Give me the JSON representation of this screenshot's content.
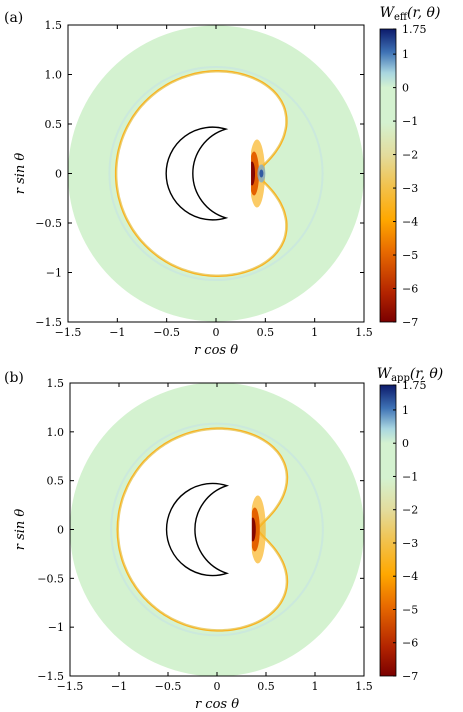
{
  "panels": [
    {
      "label": "(a)",
      "cbar_title": "W_eff(r, θ)",
      "cbar_title_main": "W",
      "cbar_title_sub": "eff",
      "cbar_title_args": "(r, θ)",
      "xlabel": "r cos θ",
      "ylabel": "r sin θ",
      "xticks": [
        "−1.5",
        "−1",
        "−0.5",
        "0",
        "0.5",
        "1",
        "1.5"
      ],
      "yticks": [
        "1.5",
        "1.0",
        "0.5",
        "0",
        "−0.5",
        "−1",
        "−1.5"
      ],
      "cticks": [
        "1.75",
        "1",
        "0",
        "−1",
        "−2",
        "−3",
        "−4",
        "−5",
        "−6",
        "−7"
      ]
    },
    {
      "label": "(b)",
      "cbar_title": "W_app(r, θ)",
      "cbar_title_main": "W",
      "cbar_title_sub": "app",
      "cbar_title_args": "(r, θ)",
      "xlabel": "r cos θ",
      "ylabel": "r sin θ",
      "xticks": [
        "−1.5",
        "−1",
        "−0.5",
        "0",
        "0.5",
        "1",
        "1.5"
      ],
      "yticks": [
        "1.5",
        "1.0",
        "0.5",
        "0",
        "−0.5",
        "−1",
        "−1.5"
      ],
      "cticks": [
        "1.75",
        "1",
        "0",
        "−1",
        "−2",
        "−3",
        "−4",
        "−5",
        "−6",
        "−7"
      ]
    }
  ],
  "chart_data": [
    {
      "type": "heatmap",
      "title": "",
      "xlabel": "r cos θ",
      "ylabel": "r sin θ",
      "xlim": [
        -1.5,
        1.5
      ],
      "ylim": [
        -1.5,
        1.5
      ],
      "colorbar_label": "W_eff(r, θ)",
      "colorbar_range": [
        -7,
        1.75
      ],
      "colorbar_ticks": [
        1.75,
        1,
        0,
        -1,
        -2,
        -3,
        -4,
        -5,
        -6,
        -7
      ],
      "domain": "annulus between a kidney-shaped inner boundary and the outer circle r = 1.5",
      "background_value": 0,
      "features": [
        {
          "description": "thin negative band along the inner kidney boundary",
          "value_approx": -2
        },
        {
          "description": "strong negative minimum at the concave notch near (0.35, 0)",
          "value_approx": -7
        },
        {
          "description": "small positive patch just right of the notch near (0.45, 0)",
          "value_approx": 1
        }
      ],
      "overlay": "black crescent outline centred near (0, 0)"
    },
    {
      "type": "heatmap",
      "title": "",
      "xlabel": "r cos θ",
      "ylabel": "r sin θ",
      "xlim": [
        -1.5,
        1.5
      ],
      "ylim": [
        -1.5,
        1.5
      ],
      "colorbar_label": "W_app(r, θ)",
      "colorbar_range": [
        -7,
        1.75
      ],
      "colorbar_ticks": [
        1.75,
        1,
        0,
        -1,
        -2,
        -3,
        -4,
        -5,
        -6,
        -7
      ],
      "domain": "annulus between a kidney-shaped inner boundary and the outer circle r = 1.5",
      "background_value": 0,
      "features": [
        {
          "description": "thin negative band along the inner kidney boundary",
          "value_approx": -2
        },
        {
          "description": "strong negative minimum at the concave notch near (0.35, 0)",
          "value_approx": -7
        }
      ],
      "overlay": "black crescent outline centred near (0, 0)"
    }
  ]
}
